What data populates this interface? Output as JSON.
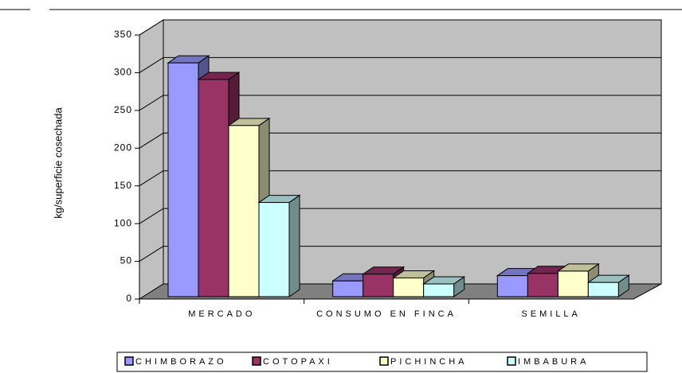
{
  "chart_data": {
    "type": "bar3d",
    "y_label": "kg/superficie cosechada",
    "categories": [
      "MERCADO",
      "CONSUMO EN FINCA",
      "SEMILLA"
    ],
    "series": [
      {
        "name": "CHIMBORAZO",
        "color": "#9999ff",
        "values": [
          313,
          24,
          31
        ]
      },
      {
        "name": "COTOPAXI",
        "color": "#993366",
        "values": [
          291,
          33,
          34
        ]
      },
      {
        "name": "PICHINCHA",
        "color": "#ffffcc",
        "values": [
          230,
          28,
          37
        ]
      },
      {
        "name": "IMBABURA",
        "color": "#ccffff",
        "values": [
          128,
          20,
          22
        ]
      }
    ],
    "ylim": [
      0,
      350
    ],
    "yticks": [
      0,
      50,
      100,
      150,
      200,
      250,
      300,
      350
    ],
    "grid": true,
    "legend": "bottom"
  }
}
